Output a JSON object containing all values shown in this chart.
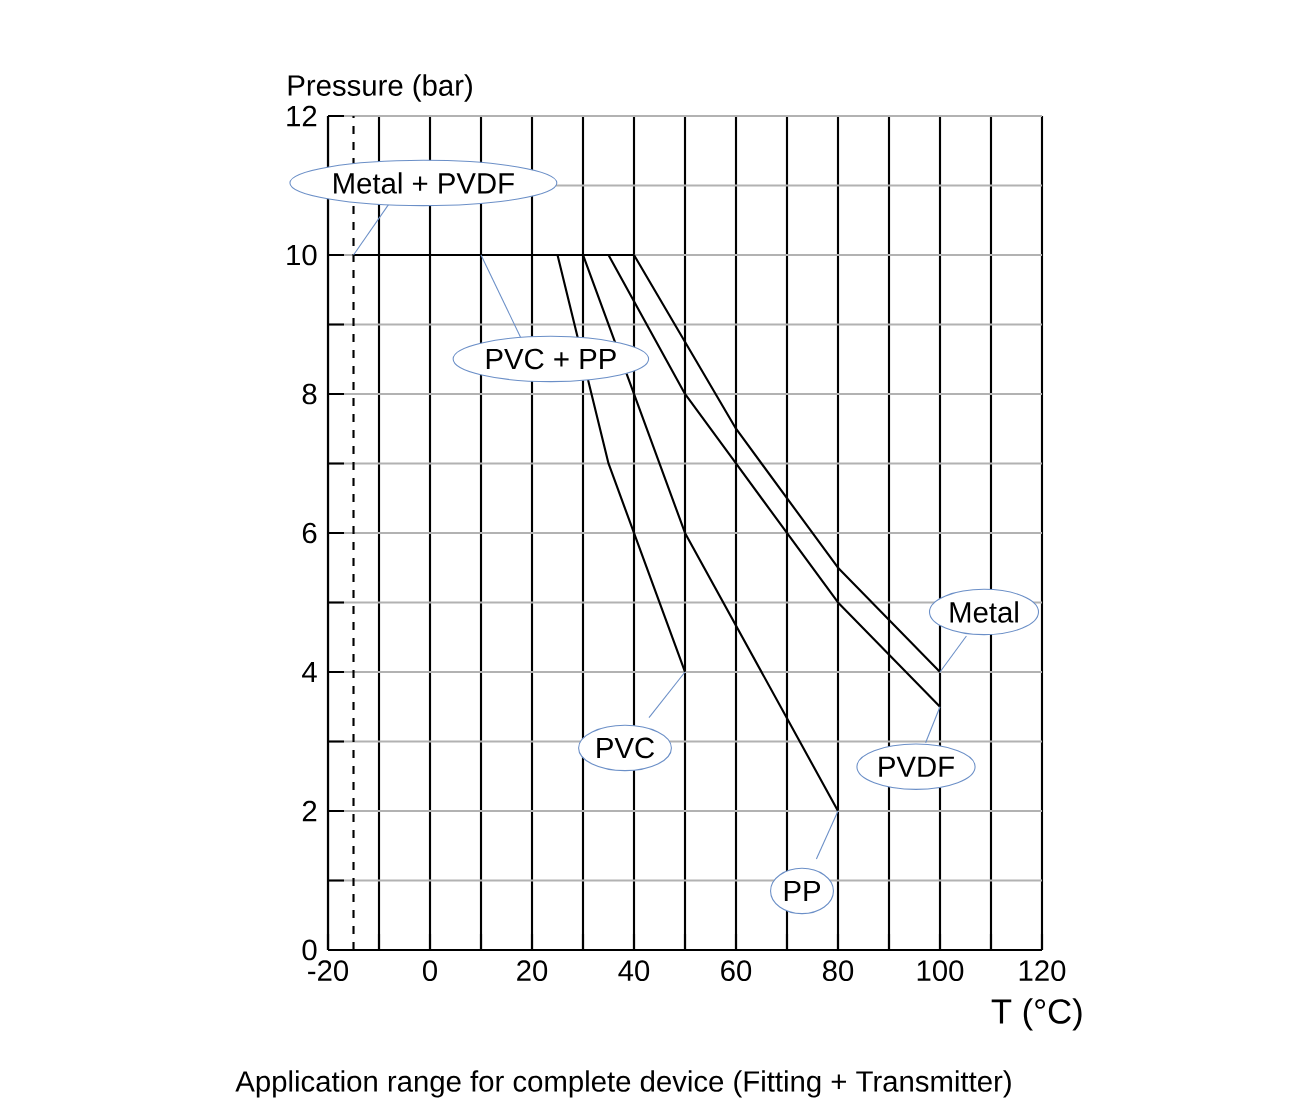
{
  "chart_data": {
    "type": "line",
    "xlabel": "T (°C)",
    "ylabel": "Pressure (bar)",
    "series": [
      {
        "name": "Metal",
        "color": "#000000",
        "x": [
          -15,
          40,
          60,
          80,
          100
        ],
        "values": [
          10,
          10,
          7.5,
          5.5,
          4
        ]
      },
      {
        "name": "PVDF",
        "color": "#000000",
        "x": [
          -15,
          35,
          50,
          60,
          80,
          100
        ],
        "values": [
          10,
          10,
          8,
          7,
          5,
          3.5
        ]
      },
      {
        "name": "PP",
        "color": "#000000",
        "x": [
          -15,
          30,
          50,
          80
        ],
        "values": [
          10,
          10,
          6,
          2
        ]
      },
      {
        "name": "PVC",
        "color": "#000000",
        "x": [
          -15,
          25,
          35,
          50
        ],
        "values": [
          10,
          10,
          7,
          4
        ]
      }
    ],
    "xlim": [
      -20,
      120
    ],
    "ylim": [
      0,
      12
    ],
    "xticks": [
      -20,
      {
        "value": -10,
        "label": null
      },
      0,
      {
        "value": 10,
        "label": null
      },
      20,
      {
        "value": 30,
        "label": null
      },
      40,
      {
        "value": 50,
        "label": null
      },
      60,
      {
        "value": 70,
        "label": null
      },
      80,
      {
        "value": 90,
        "label": null
      },
      100,
      {
        "value": 110,
        "label": null
      },
      120
    ],
    "yticks": [
      0,
      {
        "value": 1,
        "label": null
      },
      2,
      {
        "value": 3,
        "label": null
      },
      4,
      {
        "value": 5,
        "label": null
      },
      6,
      {
        "value": 7,
        "label": null
      },
      8,
      {
        "value": 9,
        "label": null
      },
      10,
      {
        "value": 11,
        "label": null
      },
      12
    ],
    "grid": true,
    "legend": false,
    "marker": "none",
    "line_style": "solid",
    "ref_lines": [
      {
        "axis": "x",
        "value": -15,
        "line_style": "dashed",
        "color": "#000000"
      }
    ],
    "annotations": [
      {
        "text": "Metal + PVDF",
        "x": -15,
        "y": 10
      },
      {
        "text": "PVC + PP",
        "x": 10,
        "y": 10
      },
      "Application range for complete device (Fitting + Transmitter)"
    ]
  }
}
